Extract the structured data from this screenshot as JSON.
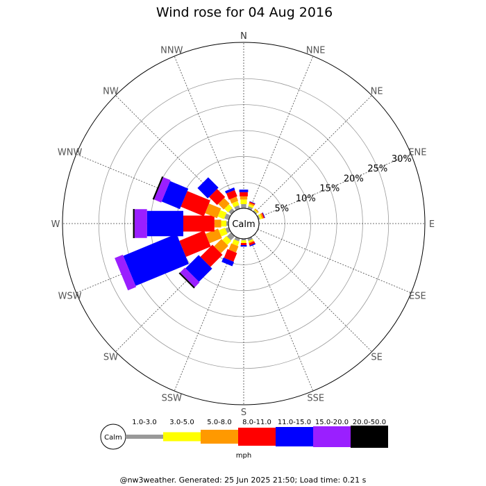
{
  "chart_data": {
    "type": "wind-rose",
    "title": "Wind rose for 04 Aug 2016",
    "directions": [
      "N",
      "NNE",
      "NE",
      "ENE",
      "E",
      "ESE",
      "SE",
      "SSE",
      "S",
      "SSW",
      "SW",
      "WSW",
      "W",
      "WNW",
      "NW",
      "NNW"
    ],
    "radial_ticks": [
      "5%",
      "10%",
      "15%",
      "20%",
      "25%",
      "30%"
    ],
    "radial_max": 32,
    "calm_label": "Calm",
    "unit": "mph",
    "bins": [
      {
        "label": "1.0-3.0",
        "color": "#999999"
      },
      {
        "label": "3.0-5.0",
        "color": "#ffff00"
      },
      {
        "label": "5.0-8.0",
        "color": "#ff9900"
      },
      {
        "label": "8.0-11.0",
        "color": "#ff0000"
      },
      {
        "label": "11.0-15.0",
        "color": "#0000ff"
      },
      {
        "label": "15.0-20.0",
        "color": "#9a1fff"
      },
      {
        "label": "20.0-50.0",
        "color": "#000000"
      }
    ],
    "frequencies": {
      "N": [
        0.8,
        0.9,
        0.6,
        0.8,
        0.5,
        0,
        0
      ],
      "NNE": [
        0.5,
        0.4,
        0.3,
        0.2,
        0.1,
        0,
        0
      ],
      "NE": [
        0.3,
        0.2,
        0.2,
        0,
        0,
        0,
        0
      ],
      "ENE": [
        0.3,
        0.4,
        0.3,
        0.2,
        0.1,
        0,
        0
      ],
      "E": [
        0.1,
        0,
        0,
        0,
        0,
        0,
        0
      ],
      "ESE": [
        0.1,
        0,
        0,
        0,
        0,
        0,
        0
      ],
      "SE": [
        0.1,
        0,
        0,
        0,
        0,
        0,
        0
      ],
      "SSE": [
        0.5,
        0.3,
        0.2,
        0.4,
        0.2,
        0,
        0
      ],
      "S": [
        0.3,
        0.5,
        0,
        0.4,
        0.3,
        0,
        0
      ],
      "SSW": [
        0.6,
        0.9,
        1.3,
        1.8,
        0.9,
        0,
        0
      ],
      "SW": [
        1.1,
        1.1,
        2.0,
        3.3,
        3.6,
        1.3,
        0.3
      ],
      "WSW": [
        0.7,
        1.3,
        2.6,
        5.2,
        11.1,
        1.7,
        0
      ],
      "W": [
        0.4,
        1.0,
        1.3,
        6.0,
        7.0,
        2.4,
        0.3
      ],
      "WNW": [
        0.9,
        1.3,
        2.5,
        4.8,
        3.8,
        1.5,
        0.3
      ],
      "NW": [
        0.7,
        1.0,
        1.5,
        2.2,
        2.8,
        0,
        0
      ],
      "NNW": [
        0.7,
        0.8,
        0.9,
        1.3,
        0.5,
        0,
        0
      ]
    }
  },
  "footer": "@nw3weather. Generated: 25 Jun 2025 21:50; Load time: 0.21 s"
}
